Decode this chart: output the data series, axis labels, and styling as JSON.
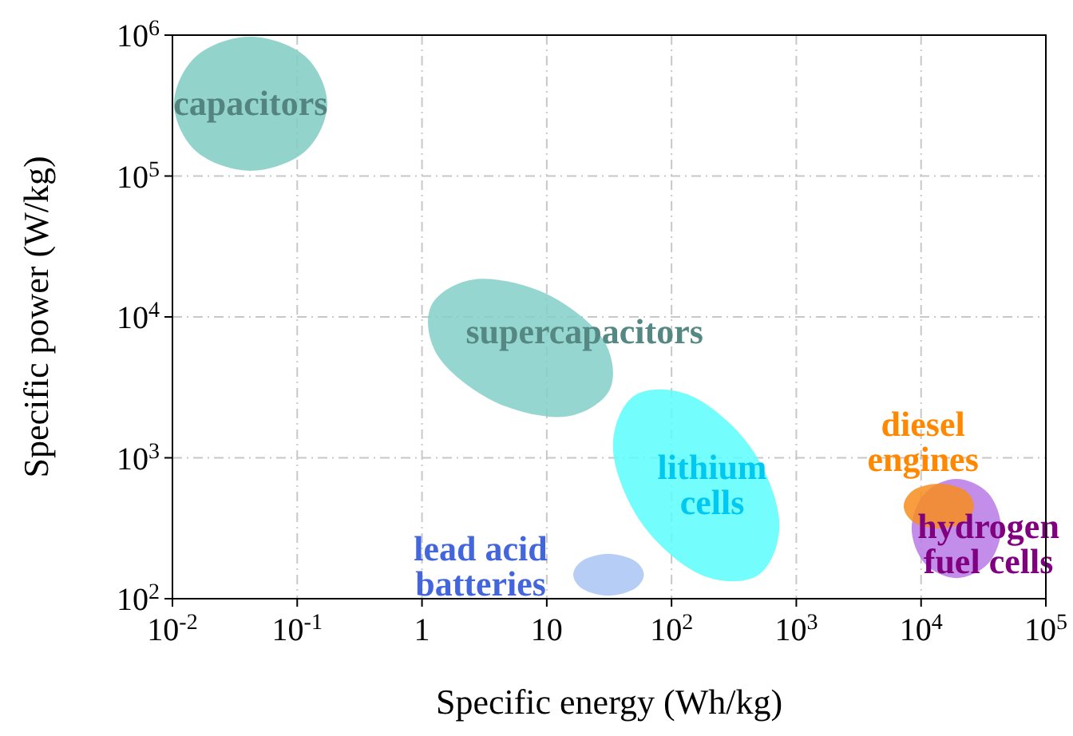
{
  "chart_data": {
    "type": "area",
    "xlabel": "Specific energy (Wh/kg)",
    "ylabel": "Specific power (W/kg)",
    "log": "xy",
    "grid": true,
    "legend": false,
    "xlim": [
      0.01,
      100000
    ],
    "ylim": [
      100,
      1000000
    ],
    "xticks": [
      {
        "value": 0.01,
        "label": "10$^{-2}$"
      },
      {
        "value": 0.1,
        "label": "10$^{-1}$"
      },
      1,
      10,
      {
        "value": 100,
        "label": "10$^{2}$"
      },
      {
        "value": 1000,
        "label": "10$^{3}$"
      },
      {
        "value": 10000,
        "label": "10$^{4}$"
      },
      {
        "value": 100000,
        "label": "10$^{5}$"
      }
    ],
    "yticks": [
      {
        "value": 100,
        "label": "10$^{2}$"
      },
      {
        "value": 1000,
        "label": "10$^{3}$"
      },
      {
        "value": 10000,
        "label": "10$^{4}$"
      },
      {
        "value": 100000,
        "label": "10$^{5}$"
      },
      {
        "value": 1000000,
        "label": "10$^{6}$"
      }
    ],
    "series": [
      {
        "name": "capacitors",
        "color": "#7fcbc3",
        "x": [
          0.174,
          0.115,
          0.042,
          0.0156,
          0.0103,
          0.0156,
          0.042,
          0.115
        ],
        "values": [
          326000,
          149000,
          109000,
          149000,
          326000,
          713000,
          975000,
          713000
        ]
      },
      {
        "name": "supercapacitors",
        "color": "#82d0c8",
        "x": [
          32,
          14,
          3.9,
          1.37,
          1.18,
          2.7,
          9.9,
          28
        ],
        "values": [
          3050,
          1960,
          2480,
          5140,
          11900,
          18500,
          14600,
          7030
        ]
      },
      {
        "name": "lithium cells",
        "color": "#5cfdfd",
        "x": [
          500,
          172,
          58,
          34,
          50,
          144,
          430,
          730
        ],
        "values": [
          148,
          148,
          341,
          1130,
          2750,
          2750,
          1190,
          359
        ]
      },
      {
        "name": "lead acid batteries",
        "color": "#a9c4f5",
        "x": [
          60,
          50,
          31,
          19.5,
          16.3,
          19.5,
          31,
          50
        ],
        "values": [
          148,
          117,
          105,
          117,
          148,
          187,
          208,
          187
        ]
      },
      {
        "name": "hydrogen fuel cells",
        "color": "#b879e6",
        "x": [
          43800,
          34600,
          19200,
          10700,
          8400,
          10700,
          19200,
          34600
        ],
        "values": [
          315,
          178,
          140,
          178,
          315,
          560,
          708,
          560
        ]
      },
      {
        "name": "diesel engines",
        "color": "#f78d1e",
        "x": [
          26500,
          22300,
          13900,
          8700,
          7260,
          8700,
          13900,
          22300
        ],
        "values": [
          454,
          350,
          315,
          350,
          454,
          590,
          655,
          590
        ]
      }
    ]
  }
}
